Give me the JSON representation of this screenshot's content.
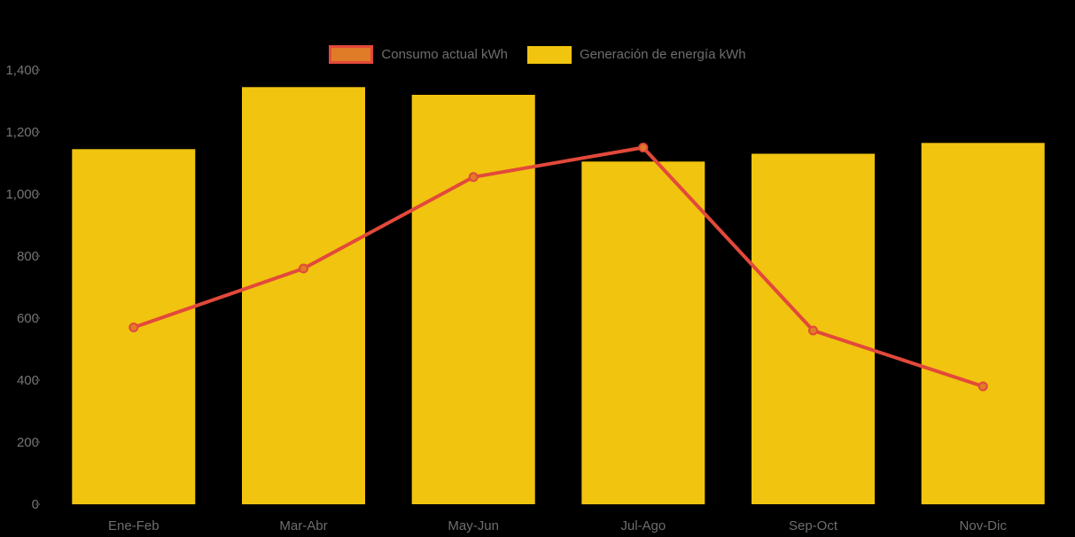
{
  "page": {
    "background": "#000000"
  },
  "legend": {
    "items": [
      {
        "label": "Consumo actual kWh"
      },
      {
        "label": "Generación de energía kWh"
      }
    ],
    "text_color": "#6E6E6E"
  },
  "chart_data": {
    "type": "bar+line combo",
    "title": "",
    "xlabel": "",
    "ylabel": "",
    "categories": [
      "Ene-Feb",
      "Mar-Abr",
      "May-Jun",
      "Jul-Ago",
      "Sep-Oct",
      "Nov-Dic"
    ],
    "series": [
      {
        "name": "Consumo actual kWh",
        "type": "line",
        "values": [
          570,
          760,
          1055,
          1150,
          560,
          380
        ],
        "line_color": "#E2493B",
        "point_fill": "#E07B28",
        "point_stroke": "#E2493B"
      },
      {
        "name": "Generación de energía kWh",
        "type": "bar",
        "values": [
          1145,
          1345,
          1320,
          1105,
          1130,
          1165
        ],
        "bar_color": "#F1C40F"
      }
    ],
    "ylim": [
      0,
      1400
    ],
    "yticks": [
      0,
      200,
      400,
      600,
      800,
      1000,
      1200,
      1400
    ],
    "ytick_labels": [
      "0",
      "200",
      "400",
      "600",
      "800",
      "1,000",
      "1,200",
      "1,400"
    ],
    "grid": false,
    "legend_position": "top-center",
    "axis_text_color": "#757575",
    "xaxis_text_color": "#6E6E6E",
    "background_color": "#000000"
  }
}
